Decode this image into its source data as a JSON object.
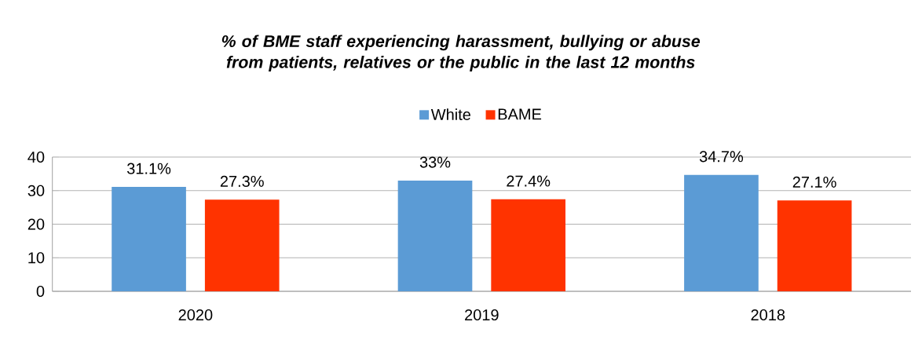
{
  "chart_data": {
    "type": "bar",
    "title": "% of BME staff experiencing harassment, bullying or abuse from patients, relatives or the public in the last 12 months",
    "categories": [
      "2020",
      "2019",
      "2018"
    ],
    "series": [
      {
        "name": "White",
        "color": "#5b9bd5",
        "values": [
          31.1,
          33,
          34.7
        ],
        "value_labels": [
          "31.1%",
          "33%",
          "34.7%"
        ]
      },
      {
        "name": "BAME",
        "color": "#ff3300",
        "values": [
          27.3,
          27.4,
          27.1
        ],
        "value_labels": [
          "27.3%",
          "27.4%",
          "27.1%"
        ]
      }
    ],
    "ylim": [
      0,
      40
    ],
    "yticks": [
      0,
      10,
      20,
      30,
      40
    ],
    "grid": "y",
    "legend": "top"
  }
}
